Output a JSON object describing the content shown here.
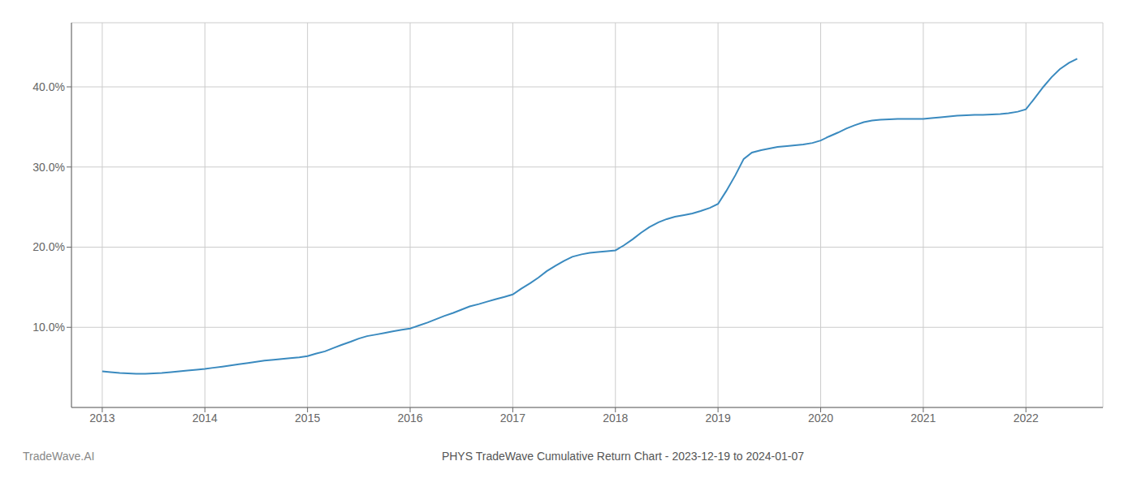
{
  "chart_data": {
    "type": "line",
    "title": "PHYS TradeWave Cumulative Return Chart - 2023-12-19 to 2024-01-07",
    "annotations": [
      "TradeWave.AI"
    ],
    "color": "#3a8abf",
    "grid": true,
    "x": [
      2013.0,
      2013.08,
      2013.17,
      2013.25,
      2013.33,
      2013.42,
      2013.5,
      2013.58,
      2013.67,
      2013.75,
      2013.83,
      2013.92,
      2014.0,
      2014.08,
      2014.17,
      2014.25,
      2014.33,
      2014.42,
      2014.5,
      2014.58,
      2014.67,
      2014.75,
      2014.83,
      2014.92,
      2015.0,
      2015.08,
      2015.17,
      2015.25,
      2015.33,
      2015.42,
      2015.5,
      2015.58,
      2015.67,
      2015.75,
      2015.83,
      2015.92,
      2016.0,
      2016.08,
      2016.17,
      2016.25,
      2016.33,
      2016.42,
      2016.5,
      2016.58,
      2016.67,
      2016.75,
      2016.83,
      2016.92,
      2017.0,
      2017.08,
      2017.17,
      2017.25,
      2017.33,
      2017.42,
      2017.5,
      2017.58,
      2017.67,
      2017.75,
      2017.83,
      2017.92,
      2018.0,
      2018.08,
      2018.17,
      2018.25,
      2018.33,
      2018.42,
      2018.5,
      2018.58,
      2018.67,
      2018.75,
      2018.83,
      2018.92,
      2019.0,
      2019.08,
      2019.17,
      2019.25,
      2019.33,
      2019.42,
      2019.5,
      2019.58,
      2019.67,
      2019.75,
      2019.83,
      2019.92,
      2020.0,
      2020.08,
      2020.17,
      2020.25,
      2020.33,
      2020.42,
      2020.5,
      2020.58,
      2020.67,
      2020.75,
      2020.83,
      2020.92,
      2021.0,
      2021.08,
      2021.17,
      2021.25,
      2021.33,
      2021.42,
      2021.5,
      2021.58,
      2021.67,
      2021.75,
      2021.83,
      2021.92,
      2022.0,
      2022.08,
      2022.17,
      2022.25,
      2022.33,
      2022.42,
      2022.5
    ],
    "values": [
      4.5,
      4.4,
      4.3,
      4.25,
      4.2,
      4.2,
      4.25,
      4.3,
      4.4,
      4.5,
      4.6,
      4.7,
      4.8,
      4.95,
      5.1,
      5.25,
      5.4,
      5.55,
      5.7,
      5.85,
      5.95,
      6.05,
      6.15,
      6.25,
      6.4,
      6.7,
      7.0,
      7.4,
      7.8,
      8.2,
      8.6,
      8.9,
      9.1,
      9.3,
      9.5,
      9.7,
      9.85,
      10.2,
      10.6,
      11.0,
      11.4,
      11.8,
      12.2,
      12.6,
      12.9,
      13.2,
      13.5,
      13.8,
      14.1,
      14.8,
      15.5,
      16.2,
      17.0,
      17.7,
      18.3,
      18.8,
      19.1,
      19.3,
      19.4,
      19.5,
      19.6,
      20.2,
      21.0,
      21.8,
      22.5,
      23.1,
      23.5,
      23.8,
      24.0,
      24.2,
      24.5,
      24.9,
      25.4,
      27.0,
      29.0,
      31.0,
      31.8,
      32.1,
      32.3,
      32.5,
      32.6,
      32.7,
      32.8,
      33.0,
      33.3,
      33.8,
      34.3,
      34.8,
      35.2,
      35.6,
      35.8,
      35.9,
      35.95,
      36.0,
      36.0,
      36.0,
      36.0,
      36.1,
      36.2,
      36.3,
      36.4,
      36.45,
      36.5,
      36.5,
      36.55,
      36.6,
      36.7,
      36.9,
      37.2,
      38.5,
      40.0,
      41.2,
      42.2,
      43.0,
      43.5
    ],
    "xlim": [
      2012.7,
      2022.75
    ],
    "xticks": [
      2013,
      2014,
      2015,
      2016,
      2017,
      2018,
      2019,
      2020,
      2021,
      2022
    ],
    "ylim": [
      0,
      48
    ],
    "yticks": [
      {
        "value": 10.0,
        "label": "10.0%"
      },
      {
        "value": 20.0,
        "label": "20.0%"
      },
      {
        "value": 30.0,
        "label": "30.0%"
      },
      {
        "value": 40.0,
        "label": "40.0%"
      }
    ]
  }
}
